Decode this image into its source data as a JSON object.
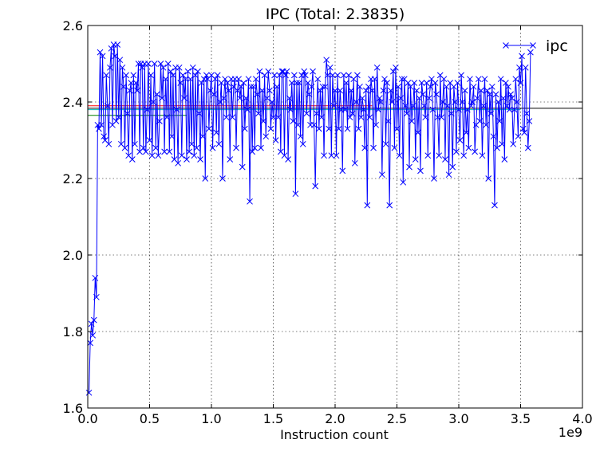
{
  "chart_data": {
    "type": "line",
    "title": "IPC (Total: 2.3835)",
    "xlabel": "Instruction count",
    "ylabel": "",
    "x_offset_text": "1e9",
    "xlim": [
      0.0,
      4.0
    ],
    "ylim": [
      1.6,
      2.6
    ],
    "x_scale_factor": 1000000000,
    "xticks": [
      0.0,
      0.5,
      1.0,
      1.5,
      2.0,
      2.5,
      3.0,
      3.5,
      4.0
    ],
    "xtick_labels": [
      "0.0",
      "0.5",
      "1.0",
      "1.5",
      "2.0",
      "2.5",
      "3.0",
      "3.5",
      "4.0"
    ],
    "yticks": [
      1.6,
      1.8,
      2.0,
      2.2,
      2.4,
      2.6
    ],
    "ytick_labels": [
      "1.6",
      "1.8",
      "2.0",
      "2.2",
      "2.4",
      "2.6"
    ],
    "grid": true,
    "legend_position": "top-right",
    "marker": "x",
    "series": [
      {
        "name": "ipc",
        "color": "#0000ff",
        "x_start": 0.01,
        "x_step": 0.01,
        "values": [
          1.64,
          1.77,
          1.82,
          1.79,
          1.83,
          1.94,
          1.89,
          2.34,
          2.33,
          2.53,
          2.34,
          2.52,
          2.31,
          2.3,
          2.47,
          2.39,
          2.29,
          2.49,
          2.54,
          2.34,
          2.55,
          2.52,
          2.35,
          2.55,
          2.36,
          2.51,
          2.29,
          2.49,
          2.44,
          2.28,
          2.47,
          2.37,
          2.26,
          2.43,
          2.45,
          2.25,
          2.47,
          2.29,
          2.45,
          2.43,
          2.5,
          2.27,
          2.5,
          2.49,
          2.28,
          2.5,
          2.27,
          2.38,
          2.5,
          2.3,
          2.47,
          2.26,
          2.4,
          2.5,
          2.28,
          2.42,
          2.26,
          2.35,
          2.5,
          2.41,
          2.49,
          2.27,
          2.46,
          2.36,
          2.5,
          2.27,
          2.48,
          2.31,
          2.47,
          2.25,
          2.49,
          2.38,
          2.24,
          2.49,
          2.45,
          2.26,
          2.47,
          2.41,
          2.46,
          2.25,
          2.48,
          2.27,
          2.46,
          2.29,
          2.49,
          2.26,
          2.47,
          2.28,
          2.48,
          2.37,
          2.25,
          2.45,
          2.31,
          2.46,
          2.2,
          2.47,
          2.46,
          2.33,
          2.43,
          2.47,
          2.28,
          2.42,
          2.46,
          2.32,
          2.47,
          2.29,
          2.4,
          2.45,
          2.2,
          2.41,
          2.46,
          2.36,
          2.45,
          2.43,
          2.25,
          2.46,
          2.36,
          2.44,
          2.46,
          2.28,
          2.43,
          2.46,
          2.41,
          2.44,
          2.23,
          2.45,
          2.33,
          2.41,
          2.38,
          2.46,
          2.14,
          2.44,
          2.27,
          2.44,
          2.28,
          2.46,
          2.42,
          2.37,
          2.48,
          2.28,
          2.43,
          2.35,
          2.47,
          2.31,
          2.41,
          2.48,
          2.43,
          2.33,
          2.4,
          2.36,
          2.47,
          2.3,
          2.44,
          2.36,
          2.47,
          2.27,
          2.48,
          2.48,
          2.26,
          2.47,
          2.48,
          2.25,
          2.41,
          2.38,
          2.45,
          2.35,
          2.47,
          2.16,
          2.45,
          2.34,
          2.45,
          2.31,
          2.47,
          2.29,
          2.48,
          2.47,
          2.37,
          2.45,
          2.42,
          2.34,
          2.44,
          2.48,
          2.34,
          2.18,
          2.37,
          2.46,
          2.33,
          2.43,
          2.36,
          2.44,
          2.26,
          2.44,
          2.51,
          2.47,
          2.33,
          2.49,
          2.26,
          2.47,
          2.39,
          2.43,
          2.26,
          2.47,
          2.33,
          2.43,
          2.38,
          2.22,
          2.47,
          2.38,
          2.45,
          2.33,
          2.47,
          2.36,
          2.43,
          2.37,
          2.46,
          2.24,
          2.4,
          2.47,
          2.33,
          2.44,
          2.36,
          2.41,
          2.38,
          2.28,
          2.43,
          2.13,
          2.44,
          2.36,
          2.46,
          2.43,
          2.28,
          2.46,
          2.34,
          2.49,
          2.38,
          2.41,
          2.4,
          2.21,
          2.43,
          2.46,
          2.29,
          2.45,
          2.35,
          2.13,
          2.43,
          2.4,
          2.48,
          2.28,
          2.49,
          2.33,
          2.44,
          2.26,
          2.41,
          2.46,
          2.19,
          2.46,
          2.39,
          2.37,
          2.45,
          2.23,
          2.44,
          2.35,
          2.39,
          2.45,
          2.25,
          2.43,
          2.32,
          2.41,
          2.22,
          2.45,
          2.42,
          2.39,
          2.36,
          2.45,
          2.26,
          2.41,
          2.44,
          2.46,
          2.38,
          2.2,
          2.45,
          2.42,
          2.36,
          2.26,
          2.47,
          2.36,
          2.4,
          2.46,
          2.25,
          2.44,
          2.39,
          2.21,
          2.45,
          2.37,
          2.23,
          2.44,
          2.4,
          2.27,
          2.45,
          2.38,
          2.3,
          2.47,
          2.4,
          2.26,
          2.43,
          2.32,
          2.38,
          2.28,
          2.46,
          2.39,
          2.4,
          2.44,
          2.27,
          2.34,
          2.41,
          2.46,
          2.35,
          2.43,
          2.26,
          2.39,
          2.46,
          2.34,
          2.43,
          2.2,
          2.42,
          2.37,
          2.44,
          2.31,
          2.13,
          2.42,
          2.28,
          2.4,
          2.35,
          2.46,
          2.29,
          2.41,
          2.25,
          2.45,
          2.39,
          2.44,
          2.38,
          2.42,
          2.41,
          2.29,
          2.38,
          2.46,
          2.4,
          2.31,
          2.49,
          2.45,
          2.52,
          2.33,
          2.32,
          2.49,
          2.37,
          2.28,
          2.35,
          2.53
        ]
      }
    ],
    "reference_lines": [
      {
        "y": 2.3835,
        "x_from": 0.0,
        "x_to": 4.0,
        "color": "#000000"
      },
      {
        "y": 2.39,
        "x_from": 0.0,
        "x_to": 2.3,
        "color": "#ff0000"
      },
      {
        "y": 2.38,
        "x_from": 0.0,
        "x_to": 3.5,
        "color": "#00bfbf"
      },
      {
        "y": 2.365,
        "x_from": 0.0,
        "x_to": 0.8,
        "color": "#008000"
      }
    ]
  }
}
